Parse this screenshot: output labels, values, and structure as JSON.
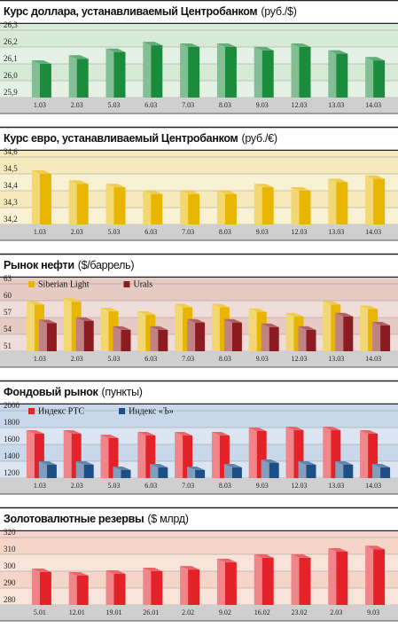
{
  "chart_data": [
    {
      "type": "bar",
      "title": "Курс доллара, устанавливаемый Центробанком",
      "unit": "(руб./$)",
      "categories": [
        "1.03",
        "2.03",
        "5.03",
        "6.03",
        "7.03",
        "8.03",
        "9.03",
        "12.03",
        "13.03",
        "14.03"
      ],
      "series": [
        {
          "name": null,
          "color": "#1b8b3c",
          "values": [
            26.1,
            26.13,
            26.17,
            26.21,
            26.2,
            26.2,
            26.18,
            26.2,
            26.16,
            26.12
          ]
        }
      ],
      "ylim": [
        25.9,
        26.3
      ],
      "yticks": [
        {
          "value": 25.9,
          "label": "25,9"
        },
        {
          "value": 26.0,
          "label": "26,0"
        },
        {
          "value": 26.1,
          "label": "26,1"
        },
        {
          "value": 26.2,
          "label": "26,2"
        },
        {
          "value": 26.3,
          "label": "26,3"
        }
      ],
      "background": "#d6ead6"
    },
    {
      "type": "bar",
      "title": "Курс евро, устанавливаемый Центробанком",
      "unit": "(руб./€)",
      "categories": [
        "1.03",
        "2.03",
        "5.03",
        "6.03",
        "7.03",
        "8.03",
        "9.03",
        "12.03",
        "13.03",
        "14.03"
      ],
      "series": [
        {
          "name": null,
          "color": "#e8b600",
          "values": [
            34.5,
            34.44,
            34.42,
            34.38,
            34.38,
            34.38,
            34.42,
            34.4,
            34.45,
            34.47
          ]
        }
      ],
      "ylim": [
        34.2,
        34.6
      ],
      "yticks": [
        {
          "value": 34.2,
          "label": "34,2"
        },
        {
          "value": 34.3,
          "label": "34,3"
        },
        {
          "value": 34.4,
          "label": "34,4"
        },
        {
          "value": 34.5,
          "label": "34,5"
        },
        {
          "value": 34.6,
          "label": "34,6"
        }
      ],
      "background": "#f6eabd"
    },
    {
      "type": "bar",
      "title": "Рынок нефти",
      "unit": "($/баррель)",
      "categories": [
        "1.03",
        "2.03",
        "5.03",
        "6.03",
        "7.03",
        "8.03",
        "9.03",
        "12.03",
        "13.03",
        "14.03"
      ],
      "series": [
        {
          "name": "Siberian Light",
          "color": "#e8b600",
          "values": [
            59.3,
            59.8,
            58.1,
            57.5,
            58.8,
            58.8,
            58,
            57.2,
            59.3,
            58.5
          ]
        },
        {
          "name": "Urals",
          "color": "#8c1c22",
          "values": [
            56,
            56.4,
            54.8,
            54.8,
            56.1,
            56.1,
            55.3,
            54.8,
            57.2,
            55.6
          ]
        }
      ],
      "ylim": [
        51,
        63
      ],
      "yticks": [
        51,
        54,
        57,
        60,
        63
      ],
      "background": "#e6cbc4"
    },
    {
      "type": "bar",
      "title": "Фондовый рынок",
      "unit": "(пункты)",
      "categories": [
        "1.03",
        "2.03",
        "5.03",
        "6.03",
        "7.03",
        "8.03",
        "9.03",
        "12.03",
        "13.03",
        "14.03"
      ],
      "series": [
        {
          "name": "Индекс РТС",
          "color": "#e4222a",
          "values": [
            1726,
            1726,
            1674,
            1705,
            1705,
            1705,
            1758,
            1768,
            1768,
            1726
          ]
        },
        {
          "name": "Индекс «Ъ»",
          "color": "#1c4f86",
          "values": [
            1358,
            1358,
            1295,
            1326,
            1295,
            1326,
            1379,
            1358,
            1358,
            1326
          ]
        }
      ],
      "ylim": [
        1200,
        2000
      ],
      "yticks": [
        1200,
        1400,
        1600,
        1800,
        2000
      ],
      "background": "#c8d7ea"
    },
    {
      "type": "bar",
      "title": "Золотовалютные резервы",
      "unit": "($ млрд)",
      "categories": [
        "5.01",
        "12.01",
        "19.01",
        "26.01",
        "2.02",
        "9.02",
        "16.02",
        "23.02",
        "2.03",
        "9.03"
      ],
      "series": [
        {
          "name": null,
          "color": "#e4222a",
          "values": [
            299.5,
            297.4,
            298.4,
            300,
            301,
            305.3,
            308,
            308,
            311.6,
            313
          ]
        }
      ],
      "ylim": [
        280,
        320
      ],
      "yticks": [
        280,
        290,
        300,
        310,
        320
      ],
      "background": "#f6d5c9"
    }
  ]
}
